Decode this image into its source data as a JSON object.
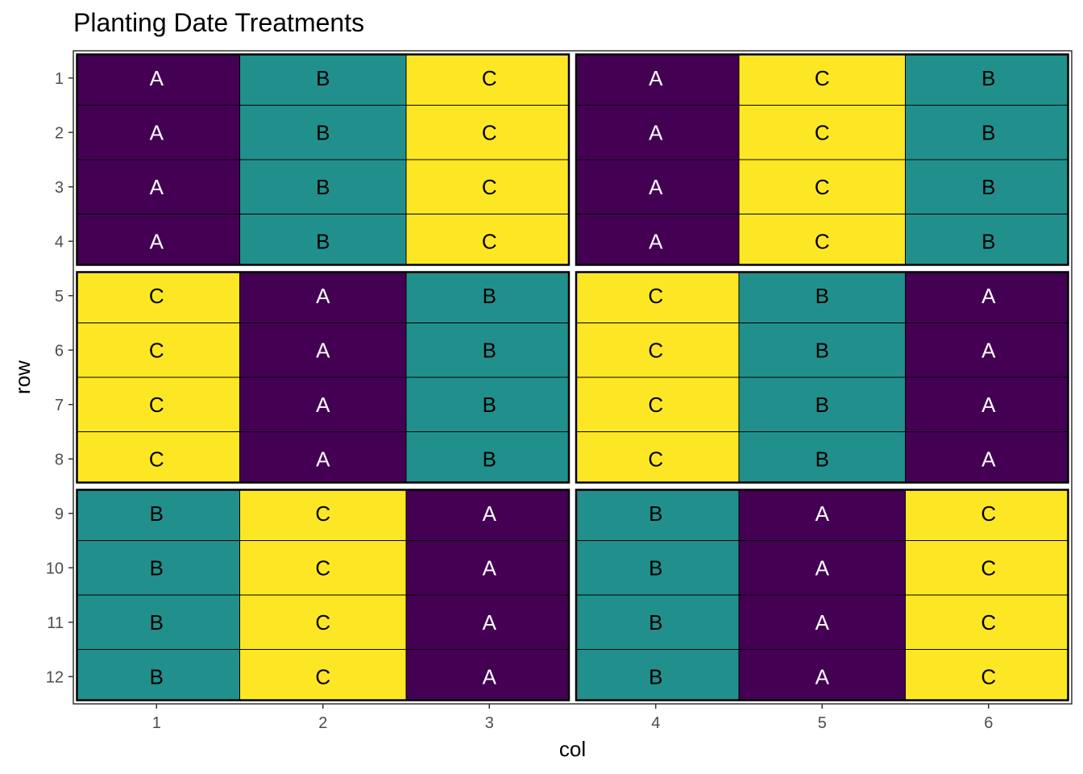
{
  "chart_data": {
    "type": "heatmap",
    "title": "Planting Date Treatments",
    "xlabel": "col",
    "ylabel": "row",
    "x_ticks": [
      "1",
      "2",
      "3",
      "4",
      "5",
      "6"
    ],
    "y_ticks": [
      "1",
      "2",
      "3",
      "4",
      "5",
      "6",
      "7",
      "8",
      "9",
      "10",
      "11",
      "12"
    ],
    "treatment_colors": {
      "A": "#440154",
      "B": "#21908C",
      "C": "#FDE725"
    },
    "label_colors": {
      "A": "#ffffff",
      "B": "#000000",
      "C": "#000000"
    },
    "block_cols": [
      [
        1,
        3
      ],
      [
        4,
        6
      ]
    ],
    "block_rows": [
      [
        1,
        4
      ],
      [
        5,
        8
      ],
      [
        9,
        12
      ]
    ],
    "grid": [
      [
        "A",
        "B",
        "C",
        "A",
        "C",
        "B"
      ],
      [
        "A",
        "B",
        "C",
        "A",
        "C",
        "B"
      ],
      [
        "A",
        "B",
        "C",
        "A",
        "C",
        "B"
      ],
      [
        "A",
        "B",
        "C",
        "A",
        "C",
        "B"
      ],
      [
        "C",
        "A",
        "B",
        "C",
        "B",
        "A"
      ],
      [
        "C",
        "A",
        "B",
        "C",
        "B",
        "A"
      ],
      [
        "C",
        "A",
        "B",
        "C",
        "B",
        "A"
      ],
      [
        "C",
        "A",
        "B",
        "C",
        "B",
        "A"
      ],
      [
        "B",
        "C",
        "A",
        "B",
        "A",
        "C"
      ],
      [
        "B",
        "C",
        "A",
        "B",
        "A",
        "C"
      ],
      [
        "B",
        "C",
        "A",
        "B",
        "A",
        "C"
      ],
      [
        "B",
        "C",
        "A",
        "B",
        "A",
        "C"
      ]
    ]
  }
}
